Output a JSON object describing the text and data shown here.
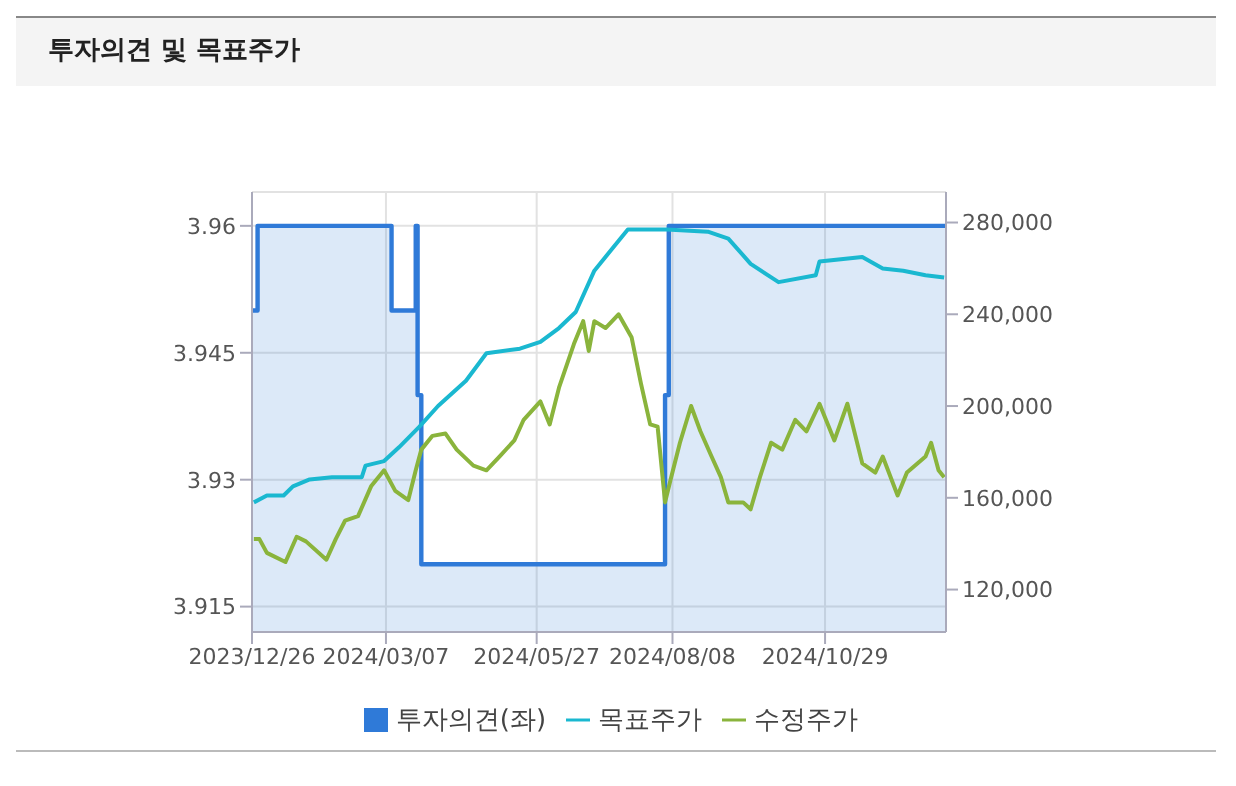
{
  "chart_data": {
    "type": "line",
    "title": "투자의견 및 목표주가",
    "series": [
      {
        "name": "투자의견(좌)",
        "type": "area",
        "color": "#2f7ad8",
        "axis": "y",
        "x": [
          "2023-12-26",
          "2023-12-29",
          "2023-12-29",
          "2024-03-10",
          "2024-03-10",
          "2024-03-23",
          "2024-03-23",
          "2024-03-24",
          "2024-03-24",
          "2024-03-26",
          "2024-03-26",
          "2024-08-04",
          "2024-08-04",
          "2024-08-06",
          "2024-08-06",
          "2025-01-02"
        ],
        "values": [
          3.95,
          3.95,
          3.96,
          3.96,
          3.95,
          3.95,
          3.96,
          3.96,
          3.94,
          3.94,
          3.92,
          3.92,
          3.94,
          3.94,
          3.96,
          3.96
        ]
      },
      {
        "name": "목표주가",
        "color": "#1ab8d0",
        "axis": "y2",
        "x": [
          "2023-12-27",
          "2024-01-03",
          "2024-01-12",
          "2024-01-17",
          "2024-01-26",
          "2024-02-07",
          "2024-02-23",
          "2024-02-25",
          "2024-03-06",
          "2024-03-14",
          "2024-03-25",
          "2024-04-04",
          "2024-04-19",
          "2024-04-30",
          "2024-05-18",
          "2024-05-29",
          "2024-06-08",
          "2024-06-17",
          "2024-06-27",
          "2024-07-07",
          "2024-07-15",
          "2024-08-05",
          "2024-08-27",
          "2024-09-07",
          "2024-09-19",
          "2024-10-04",
          "2024-10-24",
          "2024-10-26",
          "2024-11-18",
          "2024-11-29",
          "2024-12-10",
          "2024-12-22",
          "2025-01-01"
        ],
        "values": [
          158000,
          161000,
          161000,
          165000,
          168000,
          169000,
          169000,
          174000,
          176000,
          182000,
          191000,
          200000,
          211000,
          223000,
          225000,
          228000,
          234000,
          241000,
          259000,
          269000,
          277000,
          277000,
          276000,
          273000,
          262000,
          254000,
          257000,
          263000,
          265000,
          260000,
          259000,
          257000,
          256000
        ]
      },
      {
        "name": "수정주가",
        "color": "#8ab43c",
        "axis": "y2",
        "x": [
          "2023-12-27",
          "2023-12-30",
          "2024-01-03",
          "2024-01-13",
          "2024-01-19",
          "2024-01-24",
          "2024-02-04",
          "2024-02-09",
          "2024-02-14",
          "2024-02-21",
          "2024-02-28",
          "2024-03-06",
          "2024-03-12",
          "2024-03-19",
          "2024-03-23",
          "2024-03-26",
          "2024-04-01",
          "2024-04-08",
          "2024-04-14",
          "2024-04-23",
          "2024-04-30",
          "2024-05-07",
          "2024-05-15",
          "2024-05-20",
          "2024-05-29",
          "2024-06-03",
          "2024-06-08",
          "2024-06-16",
          "2024-06-21",
          "2024-06-24",
          "2024-06-27",
          "2024-07-03",
          "2024-07-10",
          "2024-07-17",
          "2024-07-22",
          "2024-07-27",
          "2024-07-31",
          "2024-08-04",
          "2024-08-07",
          "2024-08-12",
          "2024-08-18",
          "2024-08-23",
          "2024-08-29",
          "2024-09-03",
          "2024-09-07",
          "2024-09-15",
          "2024-09-19",
          "2024-09-24",
          "2024-09-30",
          "2024-10-06",
          "2024-10-13",
          "2024-10-19",
          "2024-10-26",
          "2024-11-03",
          "2024-11-10",
          "2024-11-18",
          "2024-11-25",
          "2024-11-29",
          "2024-12-07",
          "2024-12-12",
          "2024-12-22",
          "2024-12-25",
          "2024-12-29",
          "2025-01-01"
        ],
        "values": [
          142000,
          142000,
          136000,
          132000,
          143000,
          141000,
          133000,
          142000,
          150000,
          152000,
          165000,
          172000,
          163000,
          159000,
          172000,
          181000,
          187000,
          188000,
          181000,
          174000,
          172000,
          178000,
          185000,
          194000,
          202000,
          192000,
          208000,
          227000,
          237000,
          224000,
          237000,
          234000,
          240000,
          230000,
          210000,
          192000,
          191000,
          158000,
          168000,
          184000,
          200000,
          189000,
          178000,
          169000,
          158000,
          158000,
          155000,
          169000,
          184000,
          181000,
          194000,
          189000,
          201000,
          185000,
          201000,
          175000,
          171000,
          178000,
          161000,
          171000,
          178000,
          184000,
          172000,
          169000
        ]
      }
    ],
    "xlim": [
      "2023-12-26",
      "2025-01-02"
    ],
    "xticks": [
      {
        "value": "2023-12-26",
        "label": "2023/12/26"
      },
      {
        "value": "2024-03-07",
        "label": "2024/03/07"
      },
      {
        "value": "2024-05-27",
        "label": "2024/05/27"
      },
      {
        "value": "2024-08-08",
        "label": "2024/08/08"
      },
      {
        "value": "2024-10-29",
        "label": "2024/10/29"
      }
    ],
    "ylim": [
      3.912,
      3.964
    ],
    "yticks": [
      3.915,
      3.93,
      3.945,
      3.96
    ],
    "y2lim": [
      101500,
      293300
    ],
    "y2ticks": [
      {
        "value": 120000,
        "label": "120,000"
      },
      {
        "value": 160000,
        "label": "160,000"
      },
      {
        "value": 200000,
        "label": "200,000"
      },
      {
        "value": 240000,
        "label": "240,000"
      },
      {
        "value": 280000,
        "label": "280,000"
      }
    ],
    "grid": true,
    "legend": "bottom"
  }
}
